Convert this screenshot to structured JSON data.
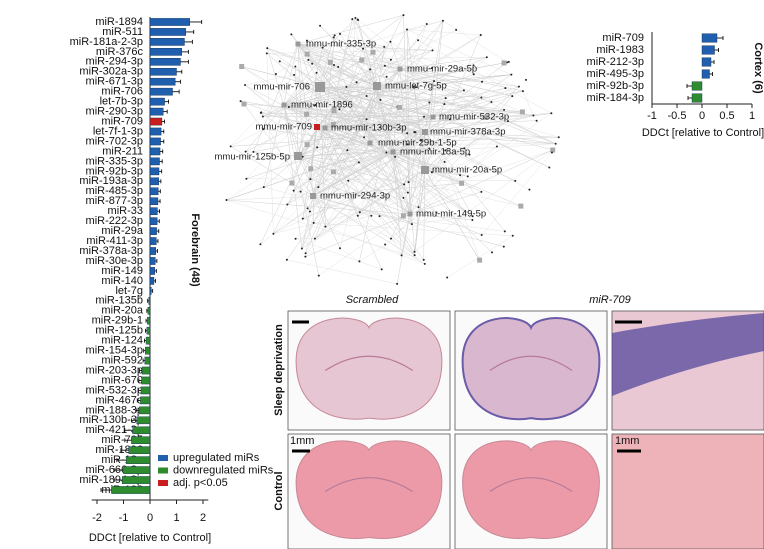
{
  "chart_data": [
    {
      "type": "hbar",
      "axis_label": "Forebrain (48)",
      "xlabel": "DDCt [relative to Control]",
      "categories": [
        "miR-1894",
        "miR-511",
        "miR-181a-2-3p",
        "miR-376c",
        "miR-294-3p",
        "miR-302a-3p",
        "miR-671-3p",
        "miR-706",
        "let-7b-3p",
        "miR-290-3p",
        "miR-709",
        "let-7f-1-3p",
        "miR-702-3p",
        "miR-211",
        "miR-335-3p",
        "miR-92b-3p",
        "miR-193a-3p",
        "miR-485-3p",
        "miR-877-3p",
        "miR-33",
        "miR-222-3p",
        "miR-29a",
        "miR-411-3p",
        "miR-378a-3p",
        "miR-30e-3p",
        "miR-149",
        "miR-140",
        "let-7g",
        "miR-135b",
        "miR-20a",
        "miR-29b-1",
        "miR-125b",
        "miR-124",
        "miR-154-3p",
        "miR-592",
        "miR-203-3p",
        "miR-670",
        "miR-532-3p",
        "miR-467e",
        "miR-188-3p",
        "miR-130b-3p",
        "miR-421-3p",
        "miR-705",
        "miR-1896",
        "miR-18a",
        "miR-666-3p",
        "miR-1894-3p",
        "miR-182"
      ],
      "values": [
        1.5,
        1.35,
        1.3,
        1.2,
        1.15,
        1.0,
        0.95,
        0.85,
        0.55,
        0.5,
        0.45,
        0.42,
        0.4,
        0.38,
        0.36,
        0.34,
        0.33,
        0.31,
        0.3,
        0.28,
        0.27,
        0.25,
        0.24,
        0.22,
        0.2,
        0.18,
        0.15,
        0.05,
        -0.05,
        -0.08,
        -0.1,
        -0.12,
        -0.15,
        -0.18,
        -0.2,
        -0.3,
        -0.32,
        -0.34,
        -0.36,
        -0.4,
        -0.5,
        -0.65,
        -0.7,
        -0.8,
        -0.9,
        -1.0,
        -1.05,
        -1.45
      ],
      "errors": [
        0.45,
        0.3,
        0.3,
        0.25,
        0.3,
        0.2,
        0.2,
        0.25,
        0.15,
        0.15,
        0.1,
        0.1,
        0.12,
        0.1,
        0.1,
        0.1,
        0.08,
        0.08,
        0.08,
        0.08,
        0.08,
        0.08,
        0.06,
        0.06,
        0.06,
        0.06,
        0.06,
        0.05,
        0.04,
        0.04,
        0.05,
        0.05,
        0.06,
        0.06,
        0.06,
        0.1,
        0.1,
        0.1,
        0.12,
        0.12,
        0.2,
        0.3,
        0.25,
        0.3,
        0.35,
        0.35,
        0.3,
        0.4
      ],
      "colors": [
        "#1f5fad",
        "#1f5fad",
        "#1f5fad",
        "#1f5fad",
        "#1f5fad",
        "#1f5fad",
        "#1f5fad",
        "#1f5fad",
        "#1f5fad",
        "#1f5fad",
        "#c81e1e",
        "#1f5fad",
        "#1f5fad",
        "#1f5fad",
        "#1f5fad",
        "#1f5fad",
        "#1f5fad",
        "#1f5fad",
        "#1f5fad",
        "#1f5fad",
        "#1f5fad",
        "#1f5fad",
        "#1f5fad",
        "#1f5fad",
        "#1f5fad",
        "#1f5fad",
        "#1f5fad",
        "#1f5fad",
        "#2e8b2e",
        "#2e8b2e",
        "#2e8b2e",
        "#2e8b2e",
        "#2e8b2e",
        "#2e8b2e",
        "#2e8b2e",
        "#2e8b2e",
        "#2e8b2e",
        "#2e8b2e",
        "#2e8b2e",
        "#2e8b2e",
        "#2e8b2e",
        "#2e8b2e",
        "#2e8b2e",
        "#2e8b2e",
        "#2e8b2e",
        "#2e8b2e",
        "#2e8b2e",
        "#2e8b2e"
      ],
      "legend": [
        {
          "label": "upregulated miRs",
          "color": "#1f5fad"
        },
        {
          "label": "downregulated miRs",
          "color": "#2e8b2e"
        },
        {
          "label": "adj. p<0.05",
          "color": "#c81e1e"
        }
      ],
      "xlim": [
        -2.2,
        2.2
      ],
      "xticks": [
        -2,
        -1,
        0,
        1,
        2
      ]
    },
    {
      "type": "hbar",
      "axis_label": "Cortex (6)",
      "xlabel": "DDCt [relative to Control]",
      "categories": [
        "miR-709",
        "miR-1983",
        "miR-212-3p",
        "miR-495-3p",
        "miR-92b-3p",
        "miR-184-3p"
      ],
      "values": [
        0.3,
        0.25,
        0.18,
        0.15,
        -0.2,
        -0.2
      ],
      "errors": [
        0.12,
        0.08,
        0.06,
        0.06,
        0.1,
        0.08
      ],
      "colors": [
        "#1f5fad",
        "#1f5fad",
        "#1f5fad",
        "#1f5fad",
        "#2e8b2e",
        "#2e8b2e"
      ],
      "xlim": [
        -1,
        1
      ],
      "xticks": [
        -1,
        -0.5,
        0,
        0.5,
        1
      ]
    }
  ],
  "network": {
    "highlight_color": "#c81e1e",
    "highlight": "mmu-mir-709",
    "nodes": [
      "mmu-mir-335-3p",
      "mmu-mir-29a-5p",
      "mmu-mir-706",
      "mmu-let-7g-5p",
      "mmu-mir-1896",
      "mmu-mir-532-3p",
      "mmu-mir-709",
      "mmu-mir-130b-3p",
      "mmu-mir-378a-3p",
      "mmu-mir-29b-1-5p",
      "mmu-mir-125b-5p",
      "mmu-mir-18a-5p",
      "mmu-mir-20a-5p",
      "mmu-mir-294-3p",
      "mmu-mir-149-5p"
    ]
  },
  "images": {
    "columns": [
      "Scrambled",
      "miR-709"
    ],
    "rows": [
      "Sleep deprivation",
      "Control"
    ],
    "scale_labels": [
      "1mm",
      "1mm"
    ]
  }
}
